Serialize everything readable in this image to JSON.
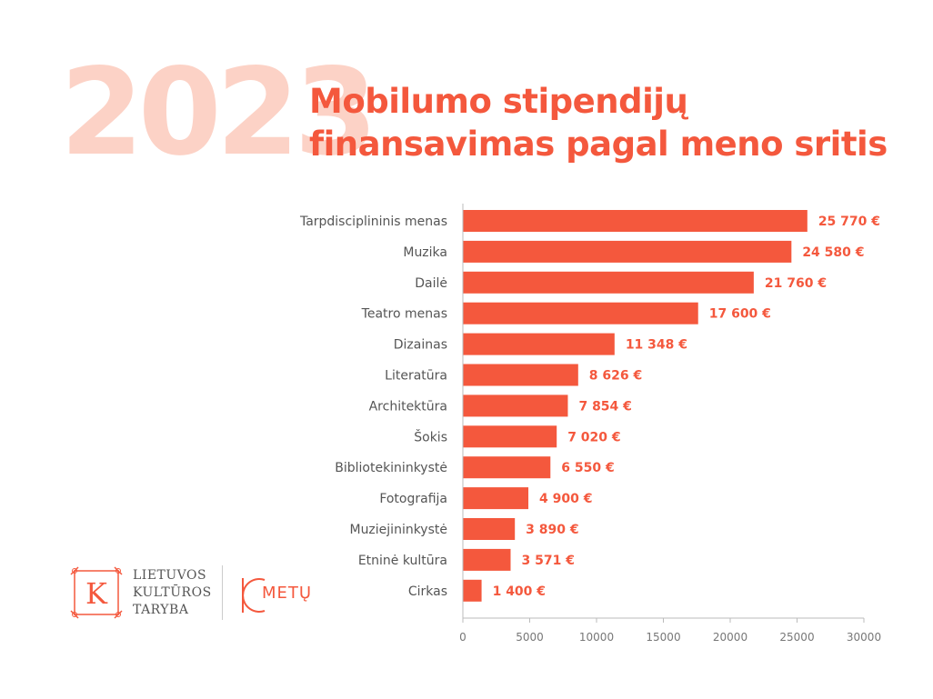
{
  "header": {
    "year": "2023",
    "title_line1": "Mobilumo stipendijų",
    "title_line2": "finansavimas pagal meno sritis"
  },
  "logo": {
    "org_line1": "LIETUVOS",
    "org_line2": "KULTŪROS",
    "org_line3": "TARYBA",
    "letter": "K",
    "anniv_text": "METŲ"
  },
  "colors": {
    "bar": "#f4583d",
    "year": "#fcd2c6",
    "label": "#555555",
    "axis": "#777777"
  },
  "chart_data": {
    "type": "bar",
    "orientation": "horizontal",
    "categories": [
      "Tarpdisciplininis menas",
      "Muzika",
      "Dailė",
      "Teatro menas",
      "Dizainas",
      "Literatūra",
      "Architektūra",
      "Šokis",
      "Bibliotekininkystė",
      "Fotografija",
      "Muziejininkystė",
      "Etninė kultūra",
      "Cirkas"
    ],
    "values": [
      25770,
      24580,
      21760,
      17600,
      11348,
      8626,
      7854,
      7020,
      6550,
      4900,
      3890,
      3571,
      1400
    ],
    "data_labels": [
      "25 770 €",
      "24 580 €",
      "21 760 €",
      "17 600 €",
      "11 348 €",
      "8 626 €",
      "7 854 €",
      "7 020 €",
      "6 550 €",
      "4 900 €",
      "3 890 €",
      "3 571 €",
      "1 400 €"
    ],
    "xlim": [
      0,
      30000
    ],
    "xticks": [
      0,
      5000,
      10000,
      15000,
      20000,
      25000,
      30000
    ],
    "xtick_labels": [
      "0",
      "5000",
      "10000",
      "15000",
      "20000",
      "25000",
      "30000"
    ],
    "grid": false,
    "legend": "none"
  }
}
